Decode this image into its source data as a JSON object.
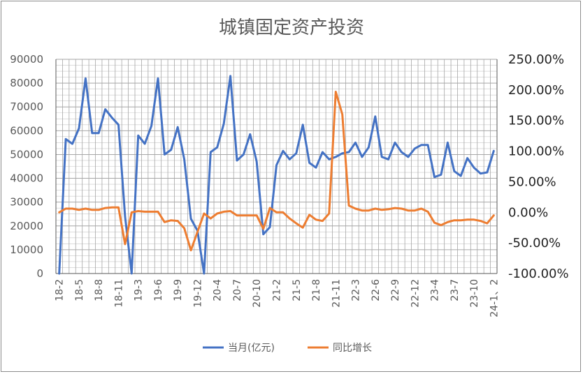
{
  "chart_data": {
    "type": "line",
    "title": "城镇固定资产投资",
    "x": [
      "18-2",
      "18-3",
      "18-4",
      "18-5",
      "18-6",
      "18-7",
      "18-8",
      "18-9",
      "18-10",
      "18-11",
      "18-12",
      "19-2",
      "19-3",
      "19-4",
      "19-5",
      "19-6",
      "19-7",
      "19-8",
      "19-9",
      "19-10",
      "19-11",
      "19-12",
      "20-2",
      "20-3",
      "20-4",
      "20-5",
      "20-6",
      "20-7",
      "20-8",
      "20-9",
      "20-10",
      "20-11",
      "20-12",
      "21-2",
      "21-3",
      "21-4",
      "21-5",
      "21-6",
      "21-7",
      "21-8",
      "21-9",
      "21-10",
      "21-11",
      "21-12",
      "22-2",
      "22-3",
      "22-4",
      "22-5",
      "22-6",
      "22-7",
      "22-8",
      "22-9",
      "22-10",
      "22-11",
      "22-12",
      "23-2",
      "23-3",
      "23-4",
      "23-5",
      "23-6",
      "23-7",
      "23-8",
      "23-9",
      "23-10",
      "23-11",
      "23-12",
      "24-1、2"
    ],
    "x_tick_labels": [
      "18-2",
      "18-5",
      "18-8",
      "18-11",
      "19-3",
      "19-6",
      "19-9",
      "19-12",
      "20-4",
      "20-7",
      "20-10",
      "21-2",
      "21-5",
      "21-8",
      "21-11",
      "22-3",
      "22-6",
      "22-9",
      "22-12",
      "23-4",
      "23-7",
      "23-10",
      "24-1、2"
    ],
    "y_axis": {
      "min": 0,
      "max": 90000,
      "ticks": [
        "0",
        "10000",
        "20000",
        "30000",
        "40000",
        "50000",
        "60000",
        "70000",
        "80000",
        "90000"
      ]
    },
    "y2_axis": {
      "min": -1.0,
      "max": 2.5,
      "ticks": [
        "-100.00%",
        "-50.00%",
        "0.00%",
        "50.00%",
        "100.00%",
        "150.00%",
        "200.00%",
        "250.00%"
      ]
    },
    "legend_position": "bottom",
    "grid": true,
    "series": [
      {
        "name": "当月(亿元)",
        "axis": "left",
        "color": "#4472C4",
        "values": [
          0,
          56500,
          54500,
          61000,
          82000,
          59000,
          59000,
          69000,
          65500,
          62500,
          24000,
          0,
          58000,
          54500,
          62000,
          82000,
          50000,
          52000,
          61500,
          48000,
          23000,
          18000,
          0,
          51000,
          53000,
          63000,
          83000,
          47500,
          50000,
          58500,
          47000,
          16500,
          19500,
          45500,
          51500,
          48000,
          50500,
          62500,
          46500,
          44500,
          51000,
          48000,
          49000,
          50500,
          51000,
          55000,
          49000,
          53000,
          66000,
          49000,
          48000,
          55000,
          51000,
          49000,
          52500,
          54000,
          54000,
          40500,
          41500,
          55000,
          43000,
          41000,
          48500,
          44500,
          42000,
          42500,
          51500
        ]
      },
      {
        "name": "同比增长",
        "axis": "right",
        "color": "#ED7D31",
        "values": [
          0.0,
          0.06,
          0.06,
          0.04,
          0.06,
          0.04,
          0.04,
          0.07,
          0.08,
          0.08,
          -0.52,
          0.0,
          0.02,
          0.01,
          0.01,
          0.01,
          -0.16,
          -0.13,
          -0.14,
          -0.26,
          -0.62,
          -0.32,
          -0.02,
          -0.1,
          -0.02,
          0.01,
          0.02,
          -0.05,
          -0.05,
          -0.05,
          -0.05,
          -0.27,
          0.07,
          0.0,
          0.0,
          -0.1,
          -0.18,
          -0.25,
          -0.04,
          -0.12,
          -0.14,
          -0.02,
          1.97,
          1.6,
          0.11,
          0.06,
          0.03,
          0.03,
          0.06,
          0.04,
          0.05,
          0.07,
          0.06,
          0.03,
          0.03,
          0.06,
          0.01,
          -0.17,
          -0.21,
          -0.16,
          -0.13,
          -0.13,
          -0.12,
          -0.12,
          -0.14,
          -0.18,
          -0.05
        ]
      }
    ]
  }
}
